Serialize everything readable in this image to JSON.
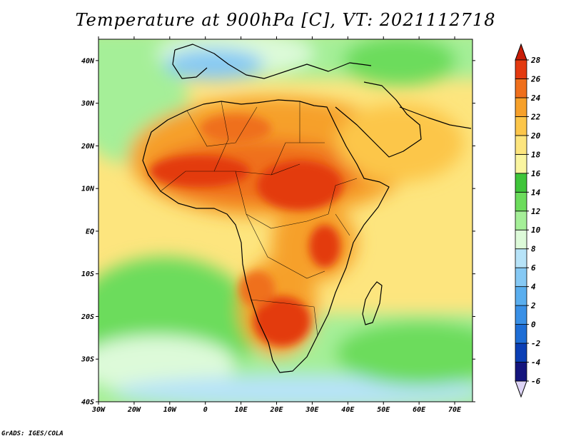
{
  "title": "Temperature at 900hPa [C], VT: 2021112718",
  "credit": "GrADS: IGES/COLA",
  "map": {
    "lon_range": [
      -30,
      75
    ],
    "lat_range": [
      -40,
      45
    ],
    "lat_ticks": [
      {
        "value": 40,
        "label": "40N"
      },
      {
        "value": 30,
        "label": "30N"
      },
      {
        "value": 20,
        "label": "20N"
      },
      {
        "value": 10,
        "label": "10N"
      },
      {
        "value": 0,
        "label": "EQ"
      },
      {
        "value": -10,
        "label": "10S"
      },
      {
        "value": -20,
        "label": "20S"
      },
      {
        "value": -30,
        "label": "30S"
      },
      {
        "value": -40,
        "label": "40S"
      }
    ],
    "lon_ticks": [
      {
        "value": -30,
        "label": "30W"
      },
      {
        "value": -20,
        "label": "20W"
      },
      {
        "value": -10,
        "label": "10W"
      },
      {
        "value": 0,
        "label": "0"
      },
      {
        "value": 10,
        "label": "10E"
      },
      {
        "value": 20,
        "label": "20E"
      },
      {
        "value": 30,
        "label": "30E"
      },
      {
        "value": 40,
        "label": "40E"
      },
      {
        "value": 50,
        "label": "50E"
      },
      {
        "value": 60,
        "label": "60E"
      },
      {
        "value": 70,
        "label": "70E"
      }
    ]
  },
  "colorbar": {
    "levels": [
      "-6",
      "-4",
      "-2",
      "0",
      "2",
      "4",
      "6",
      "8",
      "10",
      "12",
      "14",
      "16",
      "18",
      "20",
      "22",
      "24",
      "26",
      "28"
    ],
    "colors": [
      "#ddd4f5",
      "#14157d",
      "#0b3fb5",
      "#1e6ed6",
      "#3a90e6",
      "#5aaeee",
      "#86c9f4",
      "#b7e3f8",
      "#ddfad9",
      "#a5ef98",
      "#6cdc5c",
      "#3fc53a",
      "#faf5a0",
      "#fde57e",
      "#fcc64a",
      "#f6a02a",
      "#ef6f1c",
      "#e33a10",
      "#c81d08"
    ]
  }
}
